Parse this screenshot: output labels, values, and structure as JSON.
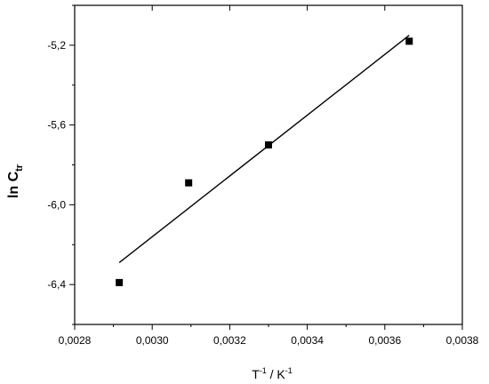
{
  "chart_data": {
    "type": "scatter",
    "title": "",
    "xlabel": {
      "base1": "T",
      "sup1": "-1",
      "sep": " / K",
      "sup2": "-1"
    },
    "ylabel": {
      "base": "ln C",
      "sub": "tr"
    },
    "xlim": [
      0.0028,
      0.0038
    ],
    "ylim": [
      -6.6,
      -5.0
    ],
    "x_major_ticks": [
      0.0028,
      0.003,
      0.0032,
      0.0034,
      0.0036,
      0.0038
    ],
    "x_tick_labels": [
      "0,0028",
      "0,0030",
      "0,0032",
      "0,0034",
      "0,0036",
      "0,0038"
    ],
    "y_major_ticks": [
      -6.4,
      -6.0,
      -5.6,
      -5.2
    ],
    "y_tick_labels": [
      "-6,4",
      "-6,0",
      "-5,6",
      "-5,2"
    ],
    "y_minor_ticks": [
      -6.6,
      -6.2,
      -5.8,
      -5.4,
      -5.0
    ],
    "grid": false,
    "series": [
      {
        "marker": "square",
        "x": [
          0.002915,
          0.003094,
          0.0033,
          0.003663
        ],
        "y": [
          -6.39,
          -5.89,
          -5.7,
          -5.18
        ]
      }
    ],
    "fit_line": {
      "x": [
        0.002915,
        0.003663
      ],
      "y": [
        -6.29,
        -5.15
      ]
    }
  }
}
